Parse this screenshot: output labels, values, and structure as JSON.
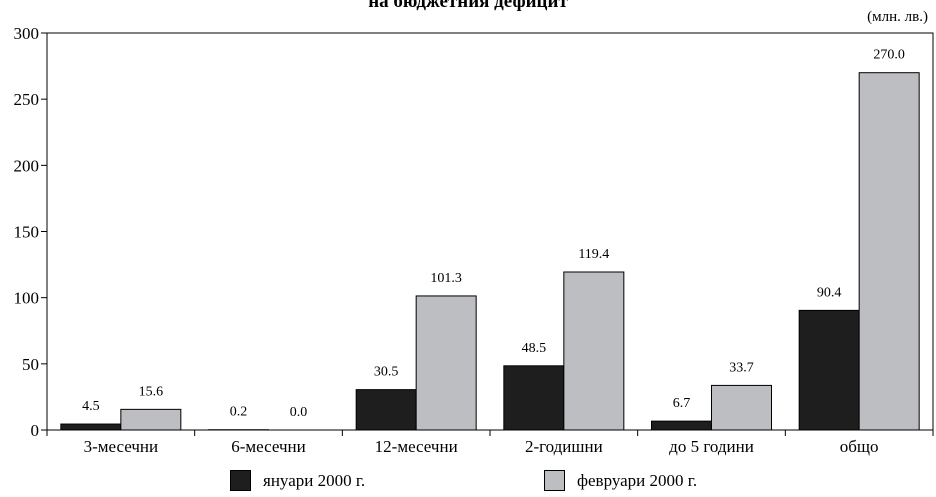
{
  "title": "на бюджетния дефицит",
  "unit": "(млн. лв.)",
  "colors": {
    "s0": "#1e1e1e",
    "s1": "#bdbec2"
  },
  "chart_data": {
    "type": "bar",
    "categories": [
      "3-месечни",
      "6-месечни",
      "12-месечни",
      "2-годишни",
      "до 5 години",
      "общо"
    ],
    "series": [
      {
        "name": "януари 2000 г.",
        "values": [
          4.5,
          0.2,
          30.5,
          48.5,
          6.7,
          90.4
        ],
        "labels": [
          "4.5",
          "0.2",
          "30.5",
          "48.5",
          "6.7",
          "90.4"
        ]
      },
      {
        "name": "февруари 2000 г.",
        "values": [
          15.6,
          0.0,
          101.3,
          119.4,
          33.7,
          270.0
        ],
        "labels": [
          "15.6",
          "0.0",
          "101.3",
          "119.4",
          "33.7",
          "270.0"
        ]
      }
    ],
    "ylim": [
      0,
      300
    ],
    "yticks": [
      0,
      50,
      100,
      150,
      200,
      250,
      300
    ],
    "xlabel": "",
    "ylabel": "",
    "grid": false,
    "legend": "bottom"
  }
}
